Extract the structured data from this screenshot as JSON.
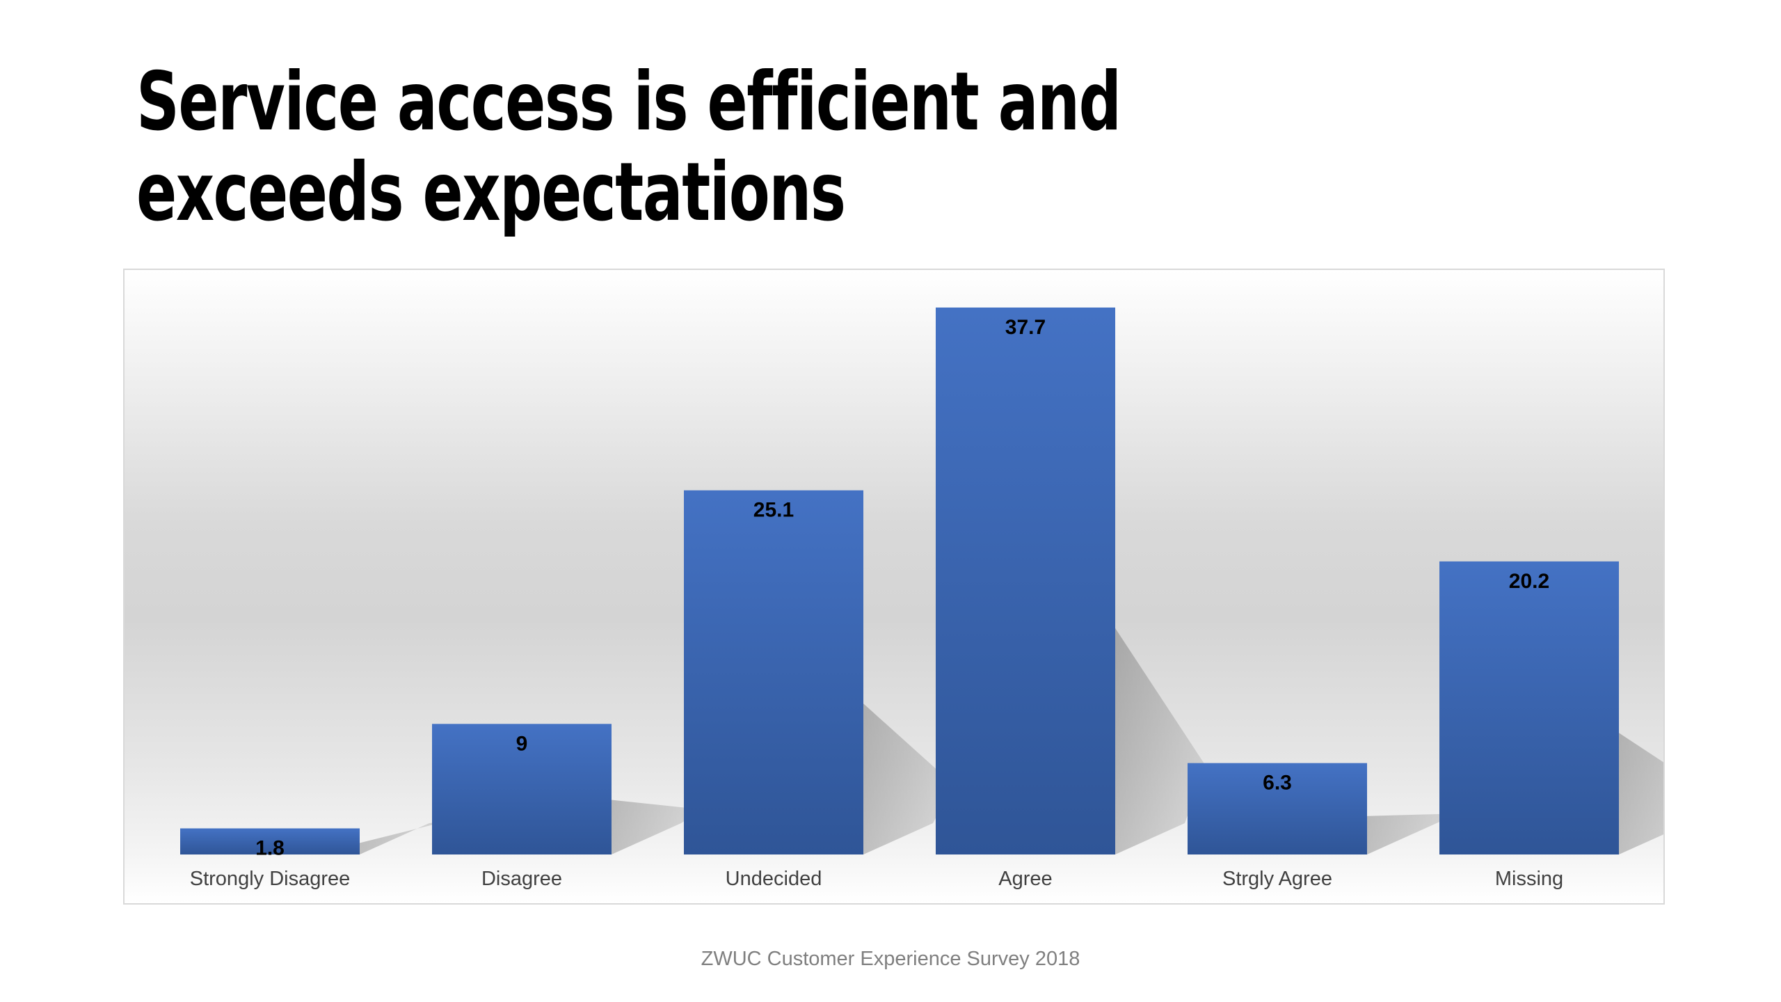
{
  "slide": {
    "title": "Service access is efficient and exceeds expectations",
    "footer": "ZWUC Customer Experience Survey 2018"
  },
  "colors": {
    "bar_top": "#4472c4",
    "bar_bottom": "#2f5597",
    "label": "#000000",
    "category_label": "#404040"
  },
  "chart_data": {
    "type": "bar",
    "categories": [
      "Strongly Disagree",
      "Disagree",
      "Undecided",
      "Agree",
      "Strgly Agree",
      "Missing"
    ],
    "values": [
      1.8,
      9,
      25.1,
      37.7,
      6.3,
      20.2
    ],
    "data_labels": [
      "1.8",
      "9",
      "25.1",
      "37.7",
      "6.3",
      "20.2"
    ],
    "title": "",
    "xlabel": "",
    "ylabel": "",
    "ylim": [
      0,
      40
    ],
    "grid": false,
    "legend": "none",
    "data_label_position": "inside-top"
  }
}
